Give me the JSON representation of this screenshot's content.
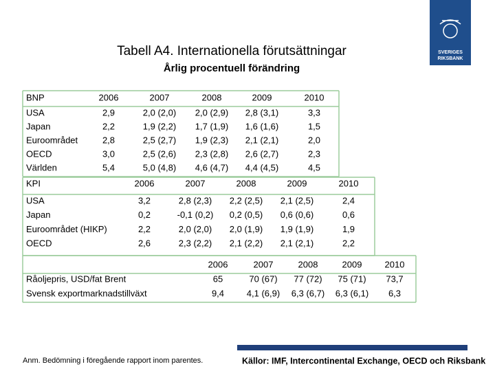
{
  "logo": {
    "line1": "SVERIGES",
    "line2": "RIKSBANK"
  },
  "title": "Tabell A4. Internationella förutsättningar",
  "subtitle": "Årlig procentuell förändring",
  "tables": [
    {
      "label_header": "BNP",
      "columns": [
        "2006",
        "2007",
        "2008",
        "2009",
        "2010"
      ],
      "rows": [
        {
          "label": "USA",
          "cells": [
            "2,9",
            "2,0 (2,0)",
            "2,0 (2,9)",
            "2,8 (3,1)",
            "3,3"
          ]
        },
        {
          "label": "Japan",
          "cells": [
            "2,2",
            "1,9 (2,2)",
            "1,7 (1,9)",
            "1,6 (1,6)",
            "1,5"
          ]
        },
        {
          "label": "Euroområdet",
          "cells": [
            "2,8",
            "2,5 (2,7)",
            "1,9 (2,3)",
            "2,1 (2,1)",
            "2,0"
          ]
        },
        {
          "label": "OECD",
          "cells": [
            "3,0",
            "2,5 (2,6)",
            "2,3 (2,8)",
            "2,6 (2,7)",
            "2,3"
          ]
        },
        {
          "label": "Världen",
          "cells": [
            "5,4",
            "5,0 (4,8)",
            "4,6 (4,7)",
            "4,4 (4,5)",
            "4,5"
          ]
        }
      ]
    },
    {
      "label_header": "KPI",
      "columns": [
        "2006",
        "2007",
        "2008",
        "2009",
        "2010"
      ],
      "rows": [
        {
          "label": "USA",
          "cells": [
            "3,2",
            "2,8 (2,3)",
            "2,2 (2,5)",
            "2,1 (2,5)",
            "2,4"
          ]
        },
        {
          "label": "Japan",
          "cells": [
            "0,2",
            "-0,1 (0,2)",
            "0,2 (0,5)",
            "0,6 (0,6)",
            "0,6"
          ]
        },
        {
          "label": "Euroområdet (HIKP)",
          "cells": [
            "2,2",
            "2,0 (2,0)",
            "2,0 (1,9)",
            "1,9 (1,9)",
            "1,9"
          ]
        },
        {
          "label": "OECD",
          "cells": [
            "2,6",
            "2,3 (2,2)",
            "2,1 (2,2)",
            "2,1 (2,1)",
            "2,2"
          ]
        }
      ]
    },
    {
      "columns": [
        "2006",
        "2007",
        "2008",
        "2009",
        "2010"
      ],
      "rows": [
        {
          "label": "Råoljepris, USD/fat Brent",
          "cells": [
            "65",
            "70 (67)",
            "77 (72)",
            "75 (71)",
            "73,7"
          ]
        },
        {
          "label": "Svensk exportmarknadstillväxt",
          "cells": [
            "9,4",
            "4,1 (6,9)",
            "6,3 (6,7)",
            "6,3 (6,1)",
            "6,3"
          ]
        }
      ]
    }
  ],
  "footer": {
    "note": "Anm. Bedömning i föregående rapport inom parentes.",
    "sources": "Källor: IMF, Intercontinental Exchange, OECD och Riksbank"
  }
}
